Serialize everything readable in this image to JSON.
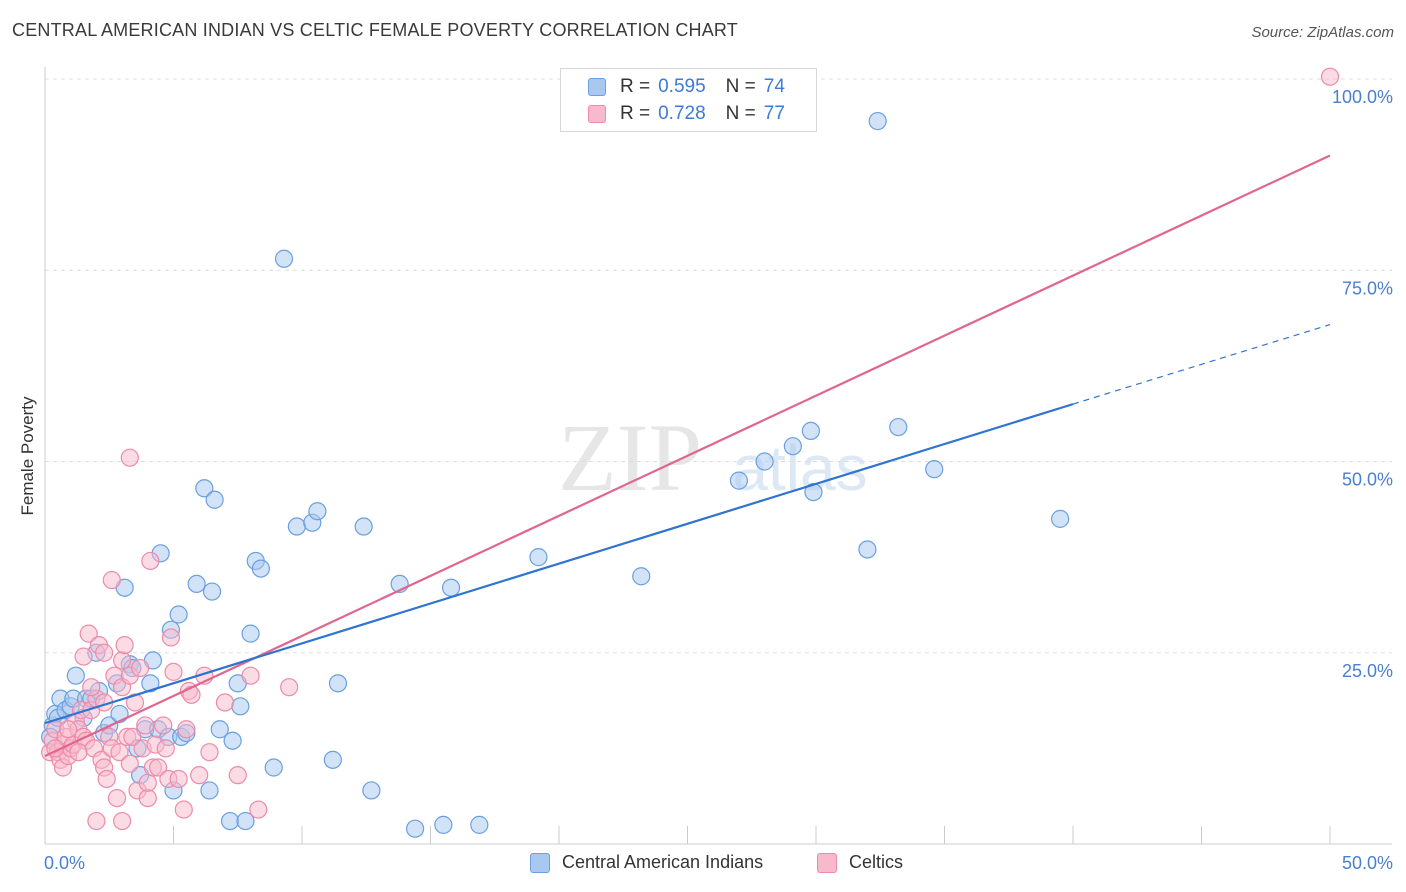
{
  "title": "CENTRAL AMERICAN INDIAN VS CELTIC FEMALE POVERTY CORRELATION CHART",
  "source": "Source: ZipAtlas.com",
  "watermark": {
    "zip": "ZIP",
    "atlas": "atlas"
  },
  "legend": [
    {
      "r_label": "R =",
      "r_value": "0.595",
      "n_label": "N =",
      "n_value": "74"
    },
    {
      "r_label": "R =",
      "r_value": "0.728",
      "n_label": "N =",
      "n_value": "77"
    }
  ],
  "colors": {
    "blue_fill": "#a8c8f0",
    "blue_stroke": "#6a9fe0",
    "blue_line": "#2f74d0",
    "pink_fill": "#f7b9cc",
    "pink_stroke": "#ee8aaa",
    "pink_line": "#e0668f",
    "tick_text": "#4a7fd0",
    "grid": "#dddddd"
  },
  "chart_data": {
    "type": "scatter",
    "xlabel": "",
    "ylabel": "Female Poverty",
    "xlim": [
      0,
      50
    ],
    "ylim": [
      0,
      100
    ],
    "x_tick_labels": [
      "0.0%",
      "50.0%"
    ],
    "y_tick_labels": [
      "25.0%",
      "50.0%",
      "75.0%",
      "100.0%"
    ],
    "y_ticks": [
      25,
      50,
      75,
      100
    ],
    "grid": "horizontal dashed",
    "legend_position": "top-center",
    "series": [
      {
        "name": "Central American Indians",
        "color": "#a8c8f0",
        "r": 0.595,
        "n": 74,
        "trend": {
          "x": [
            0,
            40
          ],
          "y": [
            15.8,
            57.5
          ],
          "extrapolate_to_x": 50,
          "extrapolate_y": 67.9
        },
        "points": [
          [
            0.3,
            15.5
          ],
          [
            0.4,
            17
          ],
          [
            0.5,
            16.5
          ],
          [
            0.6,
            19
          ],
          [
            0.8,
            17.5
          ],
          [
            1.0,
            18
          ],
          [
            1.1,
            19
          ],
          [
            1.2,
            22
          ],
          [
            1.5,
            16.5
          ],
          [
            1.6,
            19
          ],
          [
            1.8,
            19
          ],
          [
            2.0,
            25
          ],
          [
            2.1,
            20
          ],
          [
            2.3,
            14.5
          ],
          [
            2.5,
            15.5
          ],
          [
            2.8,
            21
          ],
          [
            2.9,
            17
          ],
          [
            3.1,
            33.5
          ],
          [
            3.3,
            23.5
          ],
          [
            3.4,
            23
          ],
          [
            3.6,
            12.5
          ],
          [
            3.7,
            9
          ],
          [
            3.9,
            15
          ],
          [
            4.1,
            21
          ],
          [
            4.2,
            24
          ],
          [
            4.4,
            15
          ],
          [
            4.5,
            38
          ],
          [
            4.8,
            14
          ],
          [
            4.9,
            28
          ],
          [
            5.0,
            7
          ],
          [
            5.2,
            30
          ],
          [
            5.3,
            14
          ],
          [
            5.5,
            14.5
          ],
          [
            5.9,
            34
          ],
          [
            6.2,
            46.5
          ],
          [
            6.4,
            7
          ],
          [
            6.5,
            33
          ],
          [
            6.6,
            45
          ],
          [
            6.8,
            15
          ],
          [
            7.2,
            3
          ],
          [
            7.3,
            13.5
          ],
          [
            7.5,
            21
          ],
          [
            7.6,
            18
          ],
          [
            7.8,
            3
          ],
          [
            8.0,
            27.5
          ],
          [
            8.2,
            37
          ],
          [
            8.4,
            36
          ],
          [
            8.9,
            10
          ],
          [
            9.3,
            76.5
          ],
          [
            9.8,
            41.5
          ],
          [
            10.4,
            42
          ],
          [
            10.6,
            43.5
          ],
          [
            11.2,
            11
          ],
          [
            11.4,
            21
          ],
          [
            12.4,
            41.5
          ],
          [
            12.7,
            7
          ],
          [
            13.8,
            34
          ],
          [
            14.4,
            2
          ],
          [
            15.5,
            2.5
          ],
          [
            15.8,
            33.5
          ],
          [
            16.9,
            2.5
          ],
          [
            19.2,
            37.5
          ],
          [
            23.2,
            35
          ],
          [
            27.0,
            47.5
          ],
          [
            28.0,
            50
          ],
          [
            29.1,
            52
          ],
          [
            29.8,
            54
          ],
          [
            29.9,
            46
          ],
          [
            32.0,
            38.5
          ],
          [
            32.4,
            94.5
          ],
          [
            33.2,
            54.5
          ],
          [
            34.6,
            49
          ],
          [
            39.5,
            42.5
          ],
          [
            0.2,
            14
          ]
        ]
      },
      {
        "name": "Celtics",
        "color": "#f7b9cc",
        "r": 0.728,
        "n": 77,
        "trend": {
          "x": [
            0,
            50
          ],
          "y": [
            11.5,
            90
          ]
        },
        "points": [
          [
            0.2,
            12
          ],
          [
            0.3,
            13.5
          ],
          [
            0.4,
            15
          ],
          [
            0.5,
            12
          ],
          [
            0.6,
            11
          ],
          [
            0.7,
            13
          ],
          [
            0.7,
            10
          ],
          [
            0.8,
            14
          ],
          [
            0.9,
            11.5
          ],
          [
            1.0,
            12.5
          ],
          [
            1.1,
            13
          ],
          [
            1.2,
            16
          ],
          [
            1.3,
            15
          ],
          [
            1.4,
            17.5
          ],
          [
            1.5,
            14
          ],
          [
            1.5,
            24.5
          ],
          [
            1.6,
            13.5
          ],
          [
            1.7,
            27.5
          ],
          [
            1.8,
            17.5
          ],
          [
            1.9,
            12.5
          ],
          [
            2.0,
            19
          ],
          [
            2.1,
            26
          ],
          [
            2.2,
            11
          ],
          [
            2.3,
            25
          ],
          [
            2.3,
            10
          ],
          [
            2.4,
            8.5
          ],
          [
            2.5,
            14
          ],
          [
            2.6,
            12.5
          ],
          [
            2.6,
            34.5
          ],
          [
            2.7,
            22
          ],
          [
            2.8,
            6
          ],
          [
            2.9,
            12
          ],
          [
            3.0,
            24
          ],
          [
            3.0,
            20.5
          ],
          [
            3.1,
            26
          ],
          [
            3.2,
            14
          ],
          [
            3.3,
            10.5
          ],
          [
            3.3,
            22
          ],
          [
            3.4,
            14
          ],
          [
            3.5,
            18.5
          ],
          [
            3.6,
            7
          ],
          [
            3.7,
            23
          ],
          [
            3.8,
            12.5
          ],
          [
            3.9,
            15.5
          ],
          [
            4.0,
            6
          ],
          [
            4.0,
            8
          ],
          [
            4.1,
            37
          ],
          [
            4.2,
            10
          ],
          [
            4.3,
            13
          ],
          [
            4.4,
            10
          ],
          [
            4.6,
            15.5
          ],
          [
            4.7,
            12.5
          ],
          [
            4.8,
            8.5
          ],
          [
            4.9,
            27
          ],
          [
            5.0,
            22.5
          ],
          [
            5.2,
            8.5
          ],
          [
            5.4,
            4.5
          ],
          [
            5.5,
            15
          ],
          [
            5.6,
            20
          ],
          [
            5.7,
            19.5
          ],
          [
            6.0,
            9
          ],
          [
            6.2,
            22
          ],
          [
            6.4,
            12
          ],
          [
            7.0,
            18.5
          ],
          [
            7.5,
            9
          ],
          [
            8.0,
            22
          ],
          [
            8.3,
            4.5
          ],
          [
            3.3,
            50.5
          ],
          [
            9.5,
            20.5
          ],
          [
            2.0,
            3
          ],
          [
            2.3,
            18.5
          ],
          [
            1.3,
            12
          ],
          [
            0.9,
            15
          ],
          [
            0.4,
            12.5
          ],
          [
            3.0,
            3
          ],
          [
            50.0,
            100.3
          ],
          [
            1.8,
            20.5
          ]
        ]
      }
    ]
  },
  "bottom_legend": [
    "Central American Indians",
    "Celtics"
  ]
}
